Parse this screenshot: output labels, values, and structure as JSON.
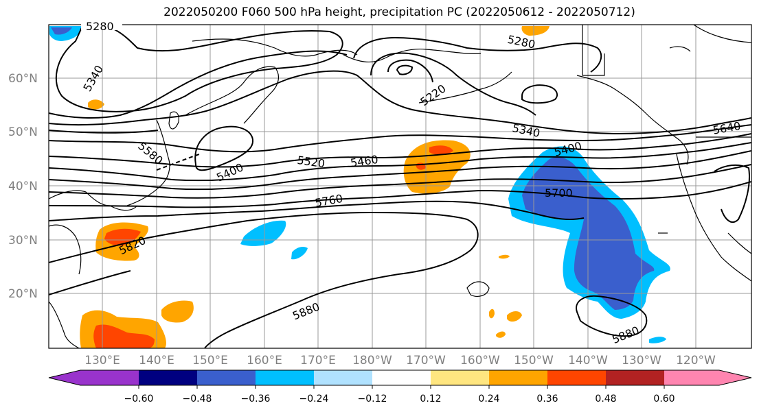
{
  "title": "2022050200 F060 500 hPa height, precipitation PC (2022050612 - 2022050712)",
  "map": {
    "lat_labels": [
      "60°N",
      "50°N",
      "40°N",
      "30°N",
      "20°N"
    ],
    "lon_labels": [
      "130°E",
      "140°E",
      "150°E",
      "160°E",
      "170°E",
      "180°W",
      "170°W",
      "160°W",
      "150°W",
      "140°W",
      "130°W",
      "120°W"
    ],
    "contour_labels": [
      "5280",
      "5340",
      "5220",
      "5280",
      "5340",
      "5640",
      "5400",
      "5580",
      "5400",
      "5520",
      "5460",
      "5700",
      "5760",
      "5820",
      "5880",
      "5880"
    ],
    "contour_color": "#000000",
    "grid_color": "#999999"
  },
  "colorbar": {
    "ticks": [
      "−0.60",
      "−0.48",
      "−0.36",
      "−0.24",
      "−0.12",
      "0.12",
      "0.24",
      "0.36",
      "0.48",
      "0.60"
    ],
    "colors": [
      "#9933cc",
      "#000080",
      "#3a5fcd",
      "#00bfff",
      "#b0e2ff",
      "#ffffff",
      "#ffe680",
      "#ffa500",
      "#ff4500",
      "#b22222",
      "#ff85b0"
    ]
  }
}
